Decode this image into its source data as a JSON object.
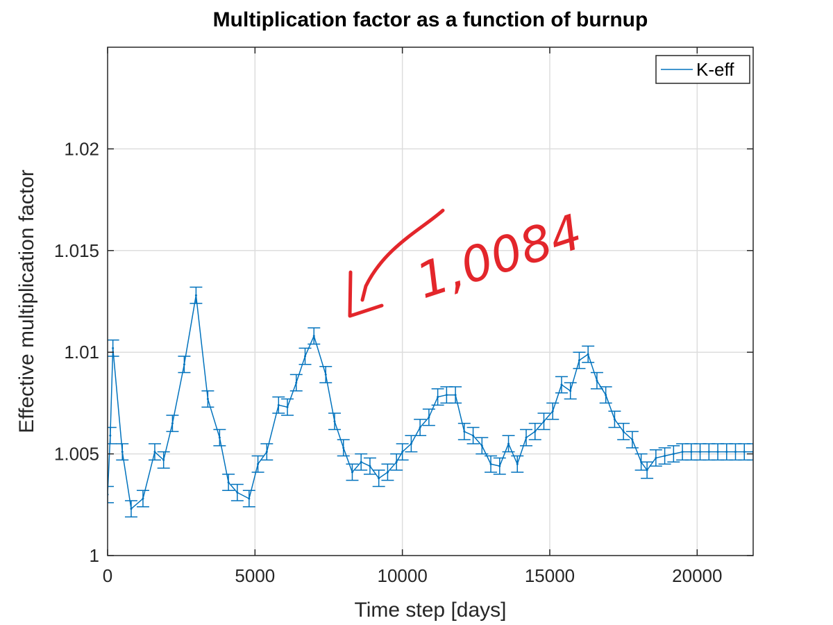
{
  "chart_data": {
    "type": "line",
    "title": "Multiplication factor as a function of burnup",
    "xlabel": "Time step [days]",
    "ylabel": "Effective multiplication factor",
    "xlim": [
      0,
      21900
    ],
    "ylim": [
      1,
      1.025
    ],
    "x_ticks": [
      0,
      5000,
      10000,
      15000,
      20000
    ],
    "x_tick_labels": [
      "0",
      "5000",
      "10000",
      "15000",
      "20000"
    ],
    "y_ticks": [
      1,
      1.005,
      1.01,
      1.015,
      1.02
    ],
    "y_tick_labels": [
      "1",
      "1.005",
      "1.01",
      "1.015",
      "1.02"
    ],
    "grid": true,
    "legend": {
      "position": "top-right",
      "entries": [
        "K-eff"
      ]
    },
    "error_bar_halfwidth": 0.0004,
    "series": [
      {
        "name": "K-eff",
        "color": "#0072bd",
        "x": [
          0,
          90,
          180,
          500,
          800,
          1200,
          1600,
          1900,
          2200,
          2600,
          3000,
          3400,
          3800,
          4100,
          4400,
          4800,
          5100,
          5400,
          5800,
          6100,
          6400,
          6700,
          7000,
          7400,
          7700,
          8000,
          8300,
          8600,
          8900,
          9200,
          9500,
          9800,
          10000,
          10300,
          10600,
          10900,
          11200,
          11500,
          11800,
          12100,
          12400,
          12700,
          13000,
          13300,
          13600,
          13900,
          14200,
          14500,
          14800,
          15100,
          15400,
          15700,
          16000,
          16300,
          16600,
          16900,
          17200,
          17500,
          17800,
          18100,
          18300,
          18600,
          18900,
          19200,
          19500,
          19800,
          20100,
          20400,
          20700,
          21000,
          21300,
          21600,
          21900
        ],
        "y": [
          1.003,
          1.0059,
          1.0102,
          1.0051,
          1.0023,
          1.0028,
          1.0051,
          1.0047,
          1.0065,
          1.0094,
          1.0128,
          1.0077,
          1.0058,
          1.0036,
          1.0031,
          1.0028,
          1.0045,
          1.0051,
          1.0074,
          1.0073,
          1.0085,
          1.0098,
          1.0108,
          1.0089,
          1.0066,
          1.0053,
          1.0041,
          1.0046,
          1.0044,
          1.0038,
          1.0041,
          1.0046,
          1.0051,
          1.0055,
          1.0063,
          1.0068,
          1.0078,
          1.0079,
          1.0079,
          1.0061,
          1.0059,
          1.0054,
          1.0045,
          1.0044,
          1.0055,
          1.0045,
          1.0058,
          1.0061,
          1.0066,
          1.0071,
          1.0084,
          1.0081,
          1.0096,
          1.0099,
          1.0086,
          1.0079,
          1.0067,
          1.0061,
          1.0057,
          1.0046,
          1.0042,
          1.0048,
          1.0049,
          1.005,
          1.0051,
          1.0051,
          1.0051,
          1.0051,
          1.0051,
          1.0051,
          1.0051,
          1.0051,
          1.0051
        ]
      }
    ],
    "annotations": [
      {
        "text": "1,0084",
        "color": "#e3262b",
        "style": "handwritten"
      }
    ]
  }
}
